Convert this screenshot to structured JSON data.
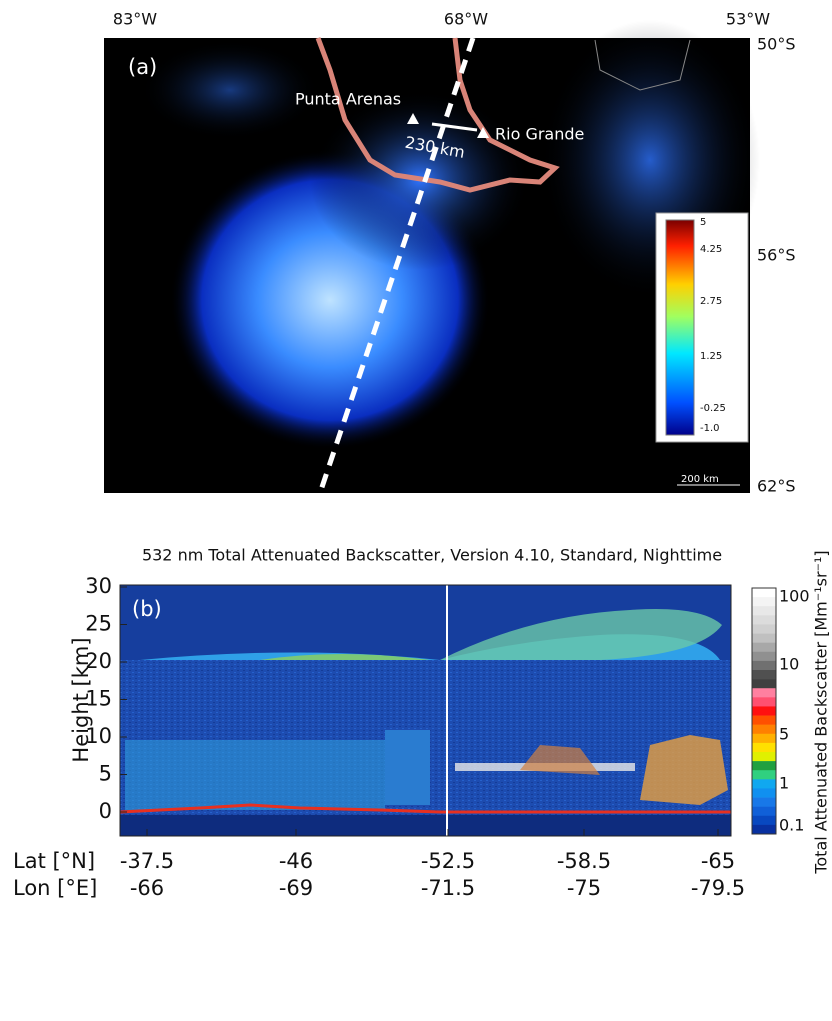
{
  "panel_a": {
    "label": "(a)",
    "lon_labels": [
      "83°W",
      "68°W",
      "53°W"
    ],
    "lat_labels": [
      "50°S",
      "56°S",
      "62°S"
    ],
    "places": [
      "Punta Arenas",
      "Rio Grande"
    ],
    "distance": "230 km",
    "scale_bar": "200 km",
    "colorbar_ticks": [
      "5",
      "4.25",
      "2.75",
      "1.25",
      "-0.25",
      "-1.0"
    ]
  },
  "panel_b": {
    "label": "(b)",
    "title": "532 nm Total Attenuated Backscatter, Version 4.10, Standard, Nighttime",
    "y_label": "Height [km]",
    "yticks": [
      30,
      25,
      20,
      15,
      10,
      5,
      0
    ],
    "lat_label": "Lat [°N]",
    "lon_label": "Lon [°E]",
    "lat_ticks": [
      "-37.5",
      "-46",
      "-52.5",
      "-58.5",
      "-65"
    ],
    "lon_ticks": [
      "-66",
      "-69",
      "-71.5",
      "-75",
      "-79.5"
    ],
    "colorbar_label": "Total Attenuated Backscatter [Mm⁻¹sr⁻¹]",
    "colorbar_ticks": [
      "100",
      "10",
      "5",
      "1",
      "0.1"
    ]
  }
}
